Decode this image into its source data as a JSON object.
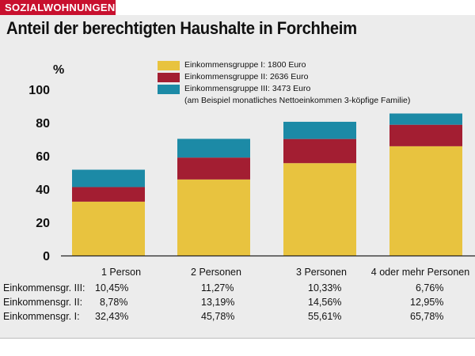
{
  "header": {
    "tag": "SOZIALWOHNUNGEN",
    "title": "Anteil der berechtigten Haushalte in Forchheim"
  },
  "chart_data": {
    "type": "bar",
    "stacked": true,
    "ylabel": "%",
    "ylim": [
      0,
      100
    ],
    "yticks": [
      0,
      20,
      40,
      60,
      80,
      100
    ],
    "grid": false,
    "legend_position": "top",
    "categories": [
      "1 Person",
      "2 Personen",
      "3 Personen",
      "4 oder mehr Personen"
    ],
    "series": [
      {
        "name": "Einkommensgruppe I: 1800 Euro",
        "color": "#e8c33f",
        "values": [
          32.43,
          45.78,
          55.61,
          65.78
        ]
      },
      {
        "name": "Einkommensgruppe II: 2636 Euro",
        "color": "#a31e32",
        "values": [
          8.78,
          13.19,
          14.56,
          12.95
        ]
      },
      {
        "name": "Einkommensgruppe III: 3473 Euro",
        "color": "#1c8aa6",
        "values": [
          10.45,
          11.27,
          10.33,
          6.76
        ]
      }
    ],
    "legend_note": "(am Beispiel monatliches Nettoeinkommen 3-köpfige Familie)"
  },
  "table": {
    "rows": [
      {
        "label": "Einkommensgr. III:",
        "values": [
          "10,45%",
          "11,27%",
          "10,33%",
          "6,76%"
        ]
      },
      {
        "label": "Einkommensgr. II:",
        "values": [
          "8,78%",
          "13,19%",
          "14,56%",
          "12,95%"
        ]
      },
      {
        "label": "Einkommensgr. I:",
        "values": [
          "32,43%",
          "45,78%",
          "55,61%",
          "65,78%"
        ]
      }
    ]
  }
}
